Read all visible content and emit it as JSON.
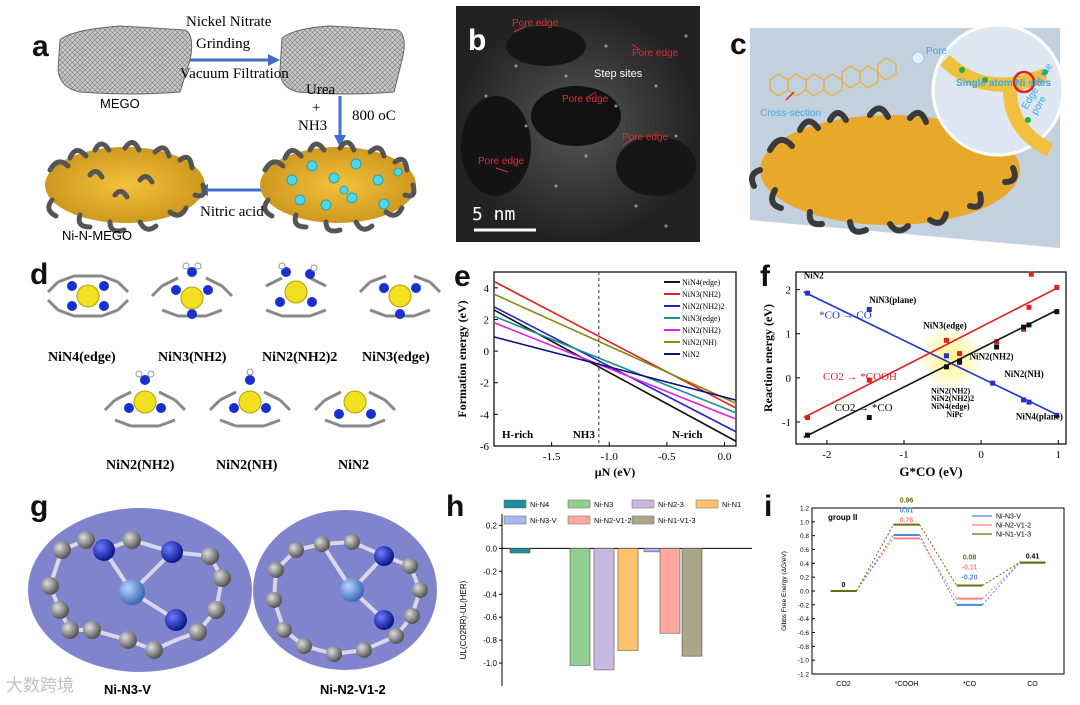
{
  "panels": {
    "a": {
      "label": "a",
      "steps": [
        "Nickel Nitrate",
        "Grinding",
        "Vacuum Filtration",
        "Urea",
        "+",
        "NH3",
        "800 oC",
        "Nitric acid"
      ],
      "mego": "MEGO",
      "product": "Ni-N-MEGO"
    },
    "b": {
      "label": "b",
      "annotations": [
        "Pore edge",
        "Pore edge",
        "Step sites",
        "Pore edge",
        "Pore edge",
        "Pore edge"
      ],
      "scale": "5 nm"
    },
    "c": {
      "label": "c",
      "annotations": [
        "Pore",
        "Single atom Ni sites",
        "Cross-section",
        "Edge of the pore"
      ]
    },
    "d": {
      "label": "d",
      "structures": [
        "NiN4(edge)",
        "NiN3(NH2)",
        "NiN2(NH2)2",
        "NiN3(edge)",
        "NiN2(NH2)",
        "NiN2(NH)",
        "NiN2"
      ]
    },
    "e": {
      "label": "e"
    },
    "f": {
      "label": "f"
    },
    "g": {
      "label": "g",
      "structures": [
        "Ni-N3-V",
        "Ni-N2-V1-2"
      ]
    },
    "h": {
      "label": "h"
    },
    "i": {
      "label": "i"
    }
  },
  "chart_data": [
    {
      "id": "e",
      "type": "line",
      "title": "",
      "xlabel": "μN (eV)",
      "ylabel": "Formation energy (eV)",
      "xlim": [
        -2.0,
        0.1
      ],
      "ylim": [
        -6,
        5
      ],
      "xticks": [
        -1.5,
        -1.0,
        -0.5,
        0.0
      ],
      "xtick_labels": [
        "-1.5",
        "-1.0",
        "-0.5",
        "0.0"
      ],
      "yticks": [
        -6,
        -4,
        -2,
        0,
        2,
        4
      ],
      "vline": -1.09,
      "regions": [
        "H-rich",
        "NH3",
        "N-rich"
      ],
      "series": [
        {
          "name": "NiN4(edge)",
          "color": "#111111",
          "x": [
            -2.0,
            0.1
          ],
          "y": [
            2.6,
            -5.7
          ]
        },
        {
          "name": "NiN3(NH2)",
          "color": "#e02020",
          "x": [
            -2.0,
            0.1
          ],
          "y": [
            4.4,
            -3.6
          ]
        },
        {
          "name": "NiN2(NH2)2",
          "color": "#2222cc",
          "x": [
            -2.0,
            0.1
          ],
          "y": [
            2.8,
            -5.1
          ]
        },
        {
          "name": "NiN3(edge)",
          "color": "#1a8f8f",
          "x": [
            -2.0,
            0.1
          ],
          "y": [
            2.2,
            -3.9
          ]
        },
        {
          "name": "NiN2(NH2)",
          "color": "#e020e0",
          "x": [
            -2.0,
            0.1
          ],
          "y": [
            1.8,
            -4.3
          ]
        },
        {
          "name": "NiN2(NH)",
          "color": "#8a8a10",
          "x": [
            -2.0,
            0.1
          ],
          "y": [
            3.6,
            -3.3
          ]
        },
        {
          "name": "NiN2",
          "color": "#10107a",
          "x": [
            -2.0,
            0.1
          ],
          "y": [
            0.9,
            -3.1
          ]
        }
      ]
    },
    {
      "id": "f",
      "type": "scatter",
      "xlabel": "G*CO (eV)",
      "ylabel": "Reaction energy (eV)",
      "xlim": [
        -2.4,
        1.1
      ],
      "ylim": [
        -1.5,
        2.4
      ],
      "xticks": [
        -2,
        -1,
        0,
        1
      ],
      "yticks": [
        -1,
        0,
        1,
        2
      ],
      "annotations": [
        "NiN2",
        "NiN3(plane)",
        "*CO → CO",
        "NiN3(edge)",
        "CO2 → *COOH",
        "NiN2(NH2)",
        "NiN2(NH)",
        "CO2 → *CO",
        "NiN2(NH2)",
        "NiN2(NH2)2",
        "NiN4(edge)",
        "NiPc",
        "NiN4(plane)"
      ],
      "series": [
        {
          "name": "*CO → CO",
          "color": "#2233cc",
          "fit": [
            [
              -2.3,
              1.95
            ],
            [
              1.0,
              -0.85
            ]
          ],
          "x": [
            -2.25,
            -1.45,
            -0.45,
            -0.28,
            0.15,
            0.55,
            0.62,
            0.98
          ],
          "y": [
            1.92,
            1.55,
            0.5,
            0.35,
            -0.12,
            -0.5,
            -0.55,
            -0.85
          ]
        },
        {
          "name": "CO2 → *COOH",
          "color": "#e02020",
          "fit": [
            [
              -2.3,
              -0.9
            ],
            [
              1.0,
              2.05
            ]
          ],
          "x": [
            -2.25,
            -1.45,
            -0.45,
            -0.28,
            0.2,
            0.55,
            0.62,
            0.65,
            0.98
          ],
          "y": [
            -0.9,
            -0.05,
            0.85,
            0.55,
            0.82,
            1.1,
            1.6,
            2.35,
            2.05
          ]
        },
        {
          "name": "CO2 → *CO",
          "color": "#111111",
          "fit": [
            [
              -2.3,
              -1.35
            ],
            [
              1.0,
              1.55
            ]
          ],
          "x": [
            -2.25,
            -1.45,
            -0.45,
            -0.28,
            0.2,
            0.55,
            0.62,
            0.98
          ],
          "y": [
            -1.3,
            -0.9,
            0.25,
            0.38,
            0.7,
            1.15,
            1.2,
            1.5
          ]
        }
      ]
    },
    {
      "id": "h",
      "type": "bar",
      "ylabel": "UL(CO2RR)-UL(HER)",
      "ylim": [
        -1.2,
        0.3
      ],
      "yticks": [
        0.2,
        0.0,
        -0.2,
        -0.4,
        -0.6,
        -0.8,
        -1.0
      ],
      "ytick_labels": [
        "0.2",
        "0.0",
        "-0.2",
        "-0.4",
        "-0.6",
        "-0.8",
        "-1.0"
      ],
      "series": [
        {
          "name": "Ni-N4",
          "color": "#1e8f9a",
          "value": -0.04
        },
        {
          "name": "Ni-N3",
          "color": "#8fcf8f",
          "value": -1.02
        },
        {
          "name": "Ni-N2-3",
          "color": "#c8b8e0",
          "value": -1.06
        },
        {
          "name": "Ni-N1",
          "color": "#ffc46b",
          "value": -0.89
        },
        {
          "name": "Ni-N3-V",
          "color": "#a8b8f0",
          "value": -0.03
        },
        {
          "name": "Ni-N2-V1-2",
          "color": "#ffa8a0",
          "value": -0.74
        },
        {
          "name": "Ni-N1-V1-3",
          "color": "#aaa68a",
          "value": -0.94
        }
      ]
    },
    {
      "id": "i",
      "type": "line",
      "title": "group II",
      "ylabel": "Gibbs Free Energy (ΔG/eV)",
      "categories": [
        "CO2",
        "*COOH",
        "*CO",
        "CO"
      ],
      "ylim": [
        -1.2,
        1.2
      ],
      "yticks": [
        1.2,
        1.0,
        0.8,
        0.6,
        0.4,
        0.2,
        0.0,
        -0.2,
        -0.4,
        -0.6,
        -0.8,
        -1.0,
        -1.2
      ],
      "ytick_labels": [
        "1.2",
        "1.0",
        "0.8",
        "0.6",
        "0.4",
        "0.2",
        "0.0",
        "-0.2",
        "-0.4",
        "-0.6",
        "-0.8",
        "-1.0",
        "-1.2"
      ],
      "series": [
        {
          "name": "Ni-N3-V",
          "color": "#4a8ae0",
          "values": [
            0,
            0.81,
            -0.2,
            0.41
          ]
        },
        {
          "name": "Ni-N2-V1-2",
          "color": "#ff8080",
          "values": [
            0,
            0.76,
            -0.11,
            0.41
          ]
        },
        {
          "name": "Ni-N1-V1-3",
          "color": "#6b6b10",
          "values": [
            0,
            0.96,
            0.08,
            0.41
          ]
        }
      ],
      "labels": [
        "0",
        "0.96",
        "0.81",
        "0.76",
        "0.08",
        "-0.11",
        "-0.20",
        "0.41"
      ]
    }
  ],
  "watermark": "大数跨境"
}
